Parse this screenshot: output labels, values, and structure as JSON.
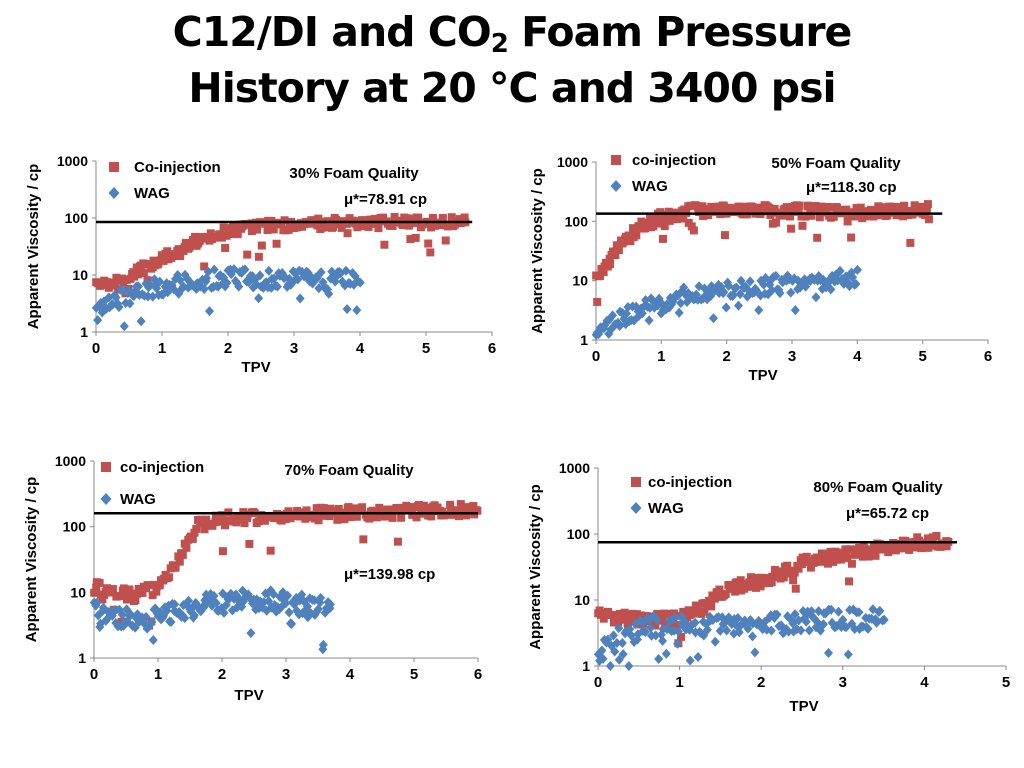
{
  "title": {
    "line1_a": "C12/DI and CO",
    "line1_sub": "2",
    "line1_b": " Foam Pressure",
    "line2": "History at 20 °C and 3400 psi"
  },
  "colors": {
    "coinjection": "#c0504d",
    "wag": "#4f81bd",
    "reference_line": "#000000"
  },
  "chart_data": [
    {
      "type": "scatter",
      "annotation": "30% Foam Quality",
      "mu_text": "μ*=78.91 cp",
      "reference_value": 85,
      "xlabel": "TPV",
      "ylabel": "Apparent Viscosity / cp",
      "y_scale": "log",
      "xlim": [
        0,
        6
      ],
      "ylim": [
        1,
        1000
      ],
      "x_ticks": [
        "0",
        "1",
        "2",
        "3",
        "4",
        "5",
        "6"
      ],
      "y_ticks": [
        "1",
        "10",
        "100",
        "1000"
      ],
      "legend": [
        "Co-injection",
        "WAG"
      ],
      "series": [
        {
          "name": "Co-injection",
          "marker": "square",
          "x_range": [
            0,
            5.6
          ],
          "anchors": [
            [
              0,
              6
            ],
            [
              0.3,
              8
            ],
            [
              0.6,
              11
            ],
            [
              1.0,
              20
            ],
            [
              1.5,
              38
            ],
            [
              2.0,
              58
            ],
            [
              2.5,
              70
            ],
            [
              3.0,
              78
            ],
            [
              4.0,
              82
            ],
            [
              5.0,
              85
            ],
            [
              5.6,
              88
            ]
          ]
        },
        {
          "name": "WAG",
          "marker": "diamond",
          "x_range": [
            0,
            4.0
          ],
          "anchors": [
            [
              0,
              2
            ],
            [
              0.3,
              3.5
            ],
            [
              0.6,
              5
            ],
            [
              1.0,
              6.5
            ],
            [
              1.5,
              8
            ],
            [
              2.0,
              9
            ],
            [
              2.5,
              8.5
            ],
            [
              3.0,
              9
            ],
            [
              3.5,
              8
            ],
            [
              4.0,
              9
            ]
          ]
        }
      ]
    },
    {
      "type": "scatter",
      "annotation": "50% Foam Quality",
      "mu_text": "μ*=118.30 cp",
      "reference_value": 135,
      "xlabel": "TPV",
      "ylabel": "Apparent Viscosity / cp",
      "y_scale": "log",
      "xlim": [
        0,
        6
      ],
      "ylim": [
        1,
        1000
      ],
      "x_ticks": [
        "0",
        "1",
        "2",
        "3",
        "4",
        "5",
        "6"
      ],
      "y_ticks": [
        "1",
        "10",
        "100",
        "1000"
      ],
      "legend": [
        "co-injection",
        "WAG"
      ],
      "series": [
        {
          "name": "co-injection",
          "marker": "square",
          "x_range": [
            0,
            5.1
          ],
          "anchors": [
            [
              0,
              12
            ],
            [
              0.3,
              30
            ],
            [
              0.6,
              70
            ],
            [
              1.0,
              120
            ],
            [
              1.5,
              150
            ],
            [
              2.0,
              160
            ],
            [
              3.0,
              150
            ],
            [
              4.0,
              140
            ],
            [
              5.0,
              150
            ],
            [
              5.1,
              160
            ]
          ]
        },
        {
          "name": "WAG",
          "marker": "diamond",
          "x_range": [
            0,
            4.0
          ],
          "anchors": [
            [
              0,
              1.3
            ],
            [
              0.3,
              2
            ],
            [
              0.6,
              3
            ],
            [
              1.0,
              4
            ],
            [
              1.5,
              6
            ],
            [
              2.0,
              7
            ],
            [
              2.5,
              8
            ],
            [
              3.0,
              9
            ],
            [
              3.5,
              10
            ],
            [
              4.0,
              11
            ]
          ]
        }
      ]
    },
    {
      "type": "scatter",
      "annotation": "70% Foam Quality",
      "mu_text": "μ*=139.98 cp",
      "reference_value": 160,
      "xlabel": "TPV",
      "ylabel": "Apparent Viscosity / cp",
      "y_scale": "log",
      "xlim": [
        0,
        6
      ],
      "ylim": [
        1,
        1000
      ],
      "x_ticks": [
        "0",
        "1",
        "2",
        "3",
        "4",
        "5",
        "6"
      ],
      "y_ticks": [
        "1",
        "10",
        "100",
        "1000"
      ],
      "legend": [
        "co-injection",
        "WAG"
      ],
      "series": [
        {
          "name": "co-injection",
          "marker": "square",
          "x_range": [
            0,
            6.0
          ],
          "anchors": [
            [
              0,
              12
            ],
            [
              0.3,
              10
            ],
            [
              0.6,
              9
            ],
            [
              1.0,
              12
            ],
            [
              1.3,
              30
            ],
            [
              1.6,
              100
            ],
            [
              2.0,
              130
            ],
            [
              3.0,
              150
            ],
            [
              4.0,
              160
            ],
            [
              5.0,
              170
            ],
            [
              6.0,
              180
            ]
          ]
        },
        {
          "name": "WAG",
          "marker": "diamond",
          "x_range": [
            0,
            3.7
          ],
          "anchors": [
            [
              0,
              5
            ],
            [
              0.5,
              4
            ],
            [
              1.0,
              4
            ],
            [
              1.5,
              6
            ],
            [
              2.0,
              7
            ],
            [
              2.5,
              8
            ],
            [
              3.0,
              7
            ],
            [
              3.5,
              6
            ],
            [
              3.7,
              6
            ]
          ]
        }
      ]
    },
    {
      "type": "scatter",
      "annotation": "80% Foam Quality",
      "mu_text": "μ*=65.72 cp",
      "reference_value": 75,
      "xlabel": "TPV",
      "ylabel": "Apparent Viscosity / cp",
      "y_scale": "log",
      "xlim": [
        0,
        5
      ],
      "ylim": [
        1,
        1000
      ],
      "x_ticks": [
        "0",
        "1",
        "2",
        "3",
        "4",
        "5"
      ],
      "y_ticks": [
        "1",
        "10",
        "100",
        "1000"
      ],
      "legend": [
        "co-injection",
        "WAG"
      ],
      "series": [
        {
          "name": "co-injection",
          "marker": "square",
          "x_range": [
            0,
            4.3
          ],
          "anchors": [
            [
              0,
              6
            ],
            [
              0.5,
              5
            ],
            [
              1.0,
              5
            ],
            [
              1.3,
              8
            ],
            [
              1.6,
              15
            ],
            [
              2.0,
              20
            ],
            [
              2.5,
              35
            ],
            [
              3.0,
              50
            ],
            [
              3.5,
              60
            ],
            [
              4.0,
              75
            ],
            [
              4.3,
              80
            ]
          ]
        },
        {
          "name": "WAG",
          "marker": "diamond",
          "x_range": [
            0,
            3.5
          ],
          "anchors": [
            [
              0,
              1.5
            ],
            [
              0.3,
              3
            ],
            [
              0.6,
              4
            ],
            [
              1.0,
              4
            ],
            [
              1.5,
              4
            ],
            [
              2.0,
              4
            ],
            [
              2.5,
              5
            ],
            [
              3.0,
              5
            ],
            [
              3.5,
              5
            ]
          ]
        }
      ]
    }
  ]
}
